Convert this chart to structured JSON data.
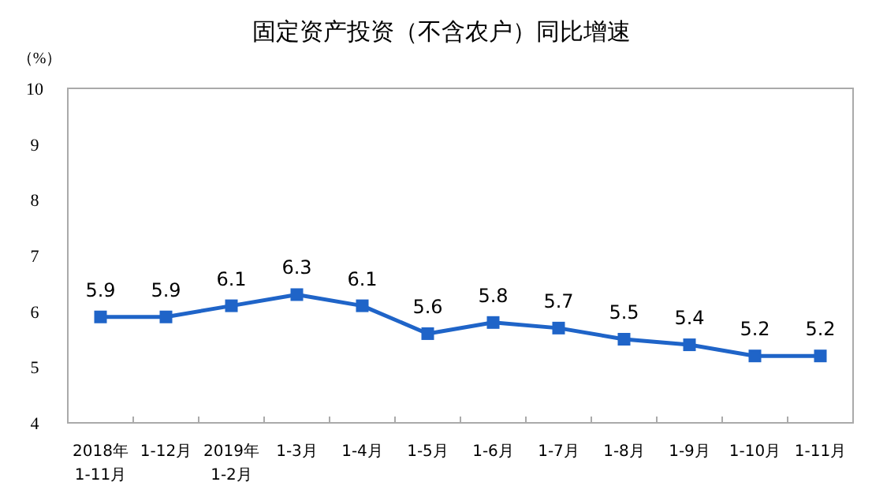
{
  "chart_data": {
    "type": "line",
    "title": "固定资产投资（不含农户）同比增速",
    "ylabel": "（%）",
    "categories": [
      "2018年\n1-11月",
      "1-12月",
      "2019年\n1-2月",
      "1-3月",
      "1-4月",
      "1-5月",
      "1-6月",
      "1-7月",
      "1-8月",
      "1-9月",
      "1-10月",
      "1-11月"
    ],
    "series": [
      {
        "color": "#1f64c8",
        "values": [
          5.9,
          5.9,
          6.1,
          6.3,
          6.1,
          5.6,
          5.8,
          5.7,
          5.5,
          5.4,
          5.2,
          5.2
        ]
      }
    ],
    "ylim": [
      4,
      10
    ],
    "yticks": [
      4,
      5,
      6,
      7,
      8,
      9,
      10
    ],
    "grid": false,
    "marker": "square",
    "line_style": "solid",
    "data_labels": true
  }
}
